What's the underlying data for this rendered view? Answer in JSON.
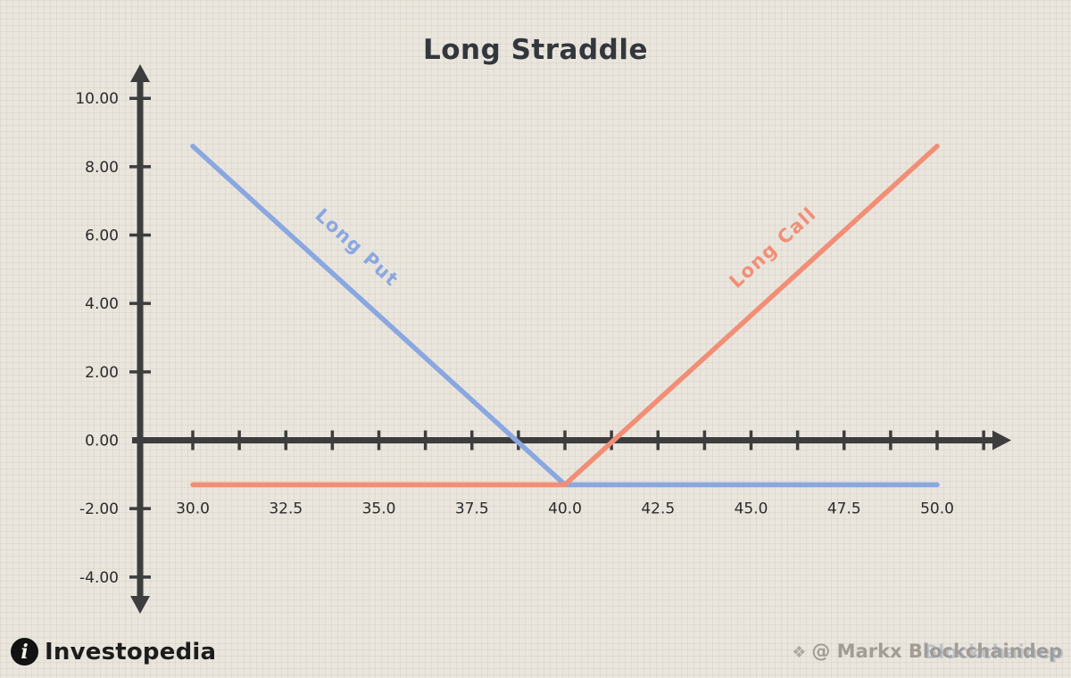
{
  "brand": {
    "name": "Investopedia",
    "mark_letter": "i"
  },
  "watermark": {
    "text": "@ Markx Blockchaindep",
    "echo_text": "Blockchainep",
    "icon": "cube-icon"
  },
  "chart_data": {
    "type": "line",
    "title": "Long Straddle",
    "xlabel": "",
    "ylabel": "",
    "xlim": [
      30,
      50
    ],
    "ylim": [
      -4,
      10
    ],
    "grid": "subtle paper grid texture, no plot gridlines",
    "legend_position": "labels rotated along lines",
    "axis_color": "#3d3d3d",
    "x_minor_step": 1.25,
    "x_minor_max": 51.25,
    "x_ticks": [
      {
        "value": 30.0,
        "label": "30.0"
      },
      {
        "value": 32.5,
        "label": "32.5"
      },
      {
        "value": 35.0,
        "label": "35.0"
      },
      {
        "value": 37.5,
        "label": "37.5"
      },
      {
        "value": 40.0,
        "label": "40.0"
      },
      {
        "value": 42.5,
        "label": "42.5"
      },
      {
        "value": 45.0,
        "label": "45.0"
      },
      {
        "value": 47.5,
        "label": "47.5"
      },
      {
        "value": 50.0,
        "label": "50.0"
      }
    ],
    "y_ticks": [
      {
        "value": 10,
        "label": "10.00"
      },
      {
        "value": 8,
        "label": "8.00"
      },
      {
        "value": 6,
        "label": "6.00"
      },
      {
        "value": 4,
        "label": "4.00"
      },
      {
        "value": 2,
        "label": "2.00"
      },
      {
        "value": 0,
        "label": "0.00"
      },
      {
        "value": -2,
        "label": "-2.00"
      },
      {
        "value": -4,
        "label": "-4.00"
      }
    ],
    "series": [
      {
        "name": "Long Put",
        "color": "#8aa7e0",
        "points": [
          [
            30,
            8.6
          ],
          [
            40,
            -1.3
          ],
          [
            50,
            -1.3
          ]
        ],
        "label_pos": [
          34.3,
          5.5
        ],
        "label_angle": 42.3
      },
      {
        "name": "Long Call",
        "color": "#f28e76",
        "points": [
          [
            30,
            -1.3
          ],
          [
            40,
            -1.3
          ],
          [
            50,
            8.6
          ]
        ],
        "label_pos": [
          45.7,
          5.5
        ],
        "label_angle": -42.3
      }
    ]
  }
}
